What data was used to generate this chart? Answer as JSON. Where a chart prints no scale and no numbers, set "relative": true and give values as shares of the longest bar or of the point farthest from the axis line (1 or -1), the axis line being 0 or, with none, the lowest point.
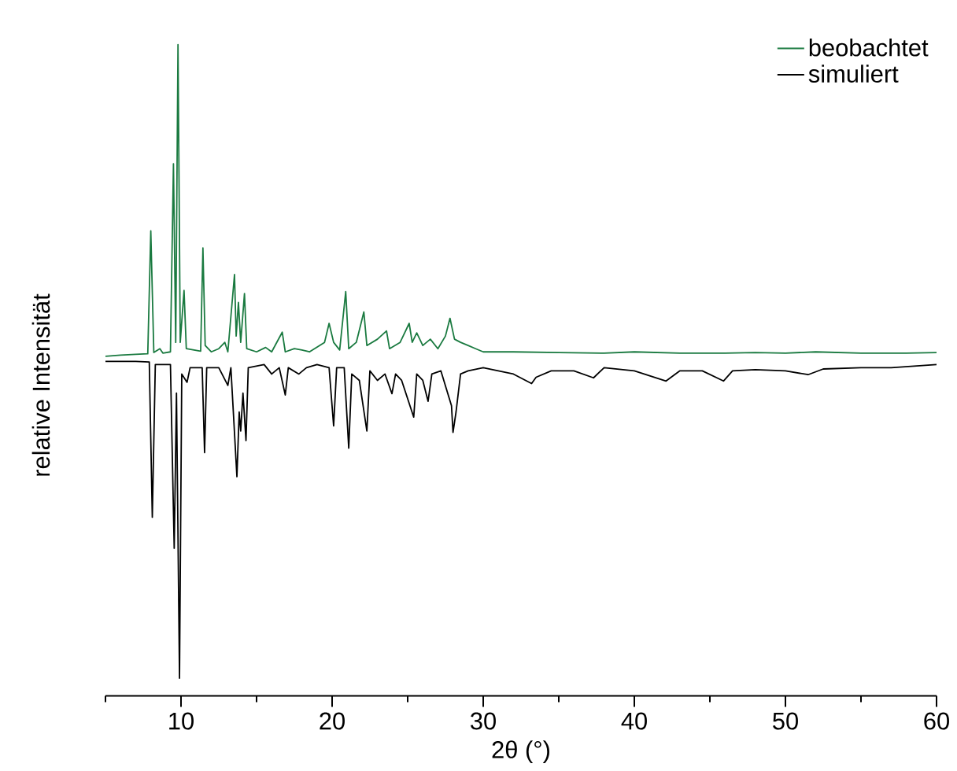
{
  "chart_data": {
    "type": "line",
    "relative": true,
    "xlabel": "2θ (°)",
    "ylabel": "relative Intensität",
    "xlim": [
      5,
      60
    ],
    "xticks": [
      {
        "value": 5,
        "label": null
      },
      10,
      {
        "value": 15,
        "label": null
      },
      20,
      {
        "value": 25,
        "label": null
      },
      30,
      {
        "value": 35,
        "label": null
      },
      40,
      {
        "value": 45,
        "label": null
      },
      50,
      {
        "value": 55,
        "label": null
      },
      60
    ],
    "legend": "top right",
    "grid": false,
    "marker": "none",
    "line_style": "solid",
    "series": [
      {
        "name": "beobachtet",
        "color": "#1a7a40",
        "x": [
          5,
          6,
          7,
          7.8,
          8.0,
          8.2,
          8.6,
          8.8,
          9.3,
          9.5,
          9.65,
          9.8,
          9.95,
          10.2,
          10.35,
          11.3,
          11.45,
          11.6,
          12.0,
          12.5,
          12.9,
          13.1,
          13.54,
          13.65,
          13.8,
          13.95,
          14.2,
          14.35,
          15,
          15.6,
          16,
          16.7,
          16.9,
          17.5,
          18,
          18.5,
          19.5,
          19.8,
          20.1,
          20.5,
          20.9,
          21.1,
          21.6,
          22.1,
          22.3,
          23.0,
          23.6,
          23.8,
          24.5,
          25.1,
          25.3,
          25.6,
          26,
          26.5,
          27,
          27.5,
          27.8,
          28.1,
          28.5,
          29,
          29.5,
          30,
          32,
          35,
          38,
          40,
          43,
          46,
          48,
          50,
          52,
          55,
          58,
          60
        ],
        "values": [
          0.508,
          0.51,
          0.511,
          0.512,
          0.706,
          0.514,
          0.52,
          0.513,
          0.515,
          0.812,
          0.53,
          1.0,
          0.53,
          0.612,
          0.52,
          0.516,
          0.679,
          0.525,
          0.515,
          0.52,
          0.53,
          0.515,
          0.637,
          0.54,
          0.593,
          0.53,
          0.607,
          0.52,
          0.515,
          0.522,
          0.515,
          0.546,
          0.515,
          0.52,
          0.518,
          0.515,
          0.53,
          0.56,
          0.53,
          0.518,
          0.61,
          0.52,
          0.53,
          0.578,
          0.525,
          0.535,
          0.548,
          0.52,
          0.53,
          0.56,
          0.53,
          0.545,
          0.525,
          0.535,
          0.52,
          0.54,
          0.568,
          0.535,
          0.53,
          0.525,
          0.52,
          0.515,
          0.515,
          0.514,
          0.513,
          0.515,
          0.513,
          0.513,
          0.514,
          0.513,
          0.515,
          0.513,
          0.513,
          0.514
        ]
      },
      {
        "name": "simuliert",
        "color": "#000000",
        "x": [
          5,
          7,
          7.9,
          8.1,
          8.3,
          9.3,
          9.55,
          9.7,
          9.9,
          10.05,
          10.4,
          10.6,
          11.4,
          11.56,
          11.7,
          12.5,
          13.1,
          13.3,
          13.7,
          13.85,
          13.95,
          14.1,
          14.3,
          14.45,
          15.5,
          16,
          16.5,
          16.9,
          17.1,
          17.8,
          18.3,
          19,
          19.8,
          20.1,
          20.3,
          20.8,
          21.1,
          21.3,
          21.8,
          22.3,
          22.5,
          23.0,
          23.5,
          23.96,
          24.2,
          24.6,
          25.4,
          25.6,
          26.0,
          26.35,
          26.6,
          27.2,
          27.9,
          28.0,
          28.2,
          28.5,
          29,
          30,
          31,
          32,
          33.2,
          33.5,
          34.5,
          36,
          37.3,
          38,
          40,
          42.1,
          43,
          44.5,
          45.9,
          46.5,
          48,
          50,
          51.5,
          52.5,
          55,
          57,
          60
        ],
        "values": [
          0.5,
          0.5,
          0.499,
          0.254,
          0.495,
          0.495,
          0.205,
          0.45,
          0,
          0.48,
          0.467,
          0.49,
          0.49,
          0.356,
          0.49,
          0.49,
          0.462,
          0.49,
          0.318,
          0.42,
          0.39,
          0.45,
          0.375,
          0.49,
          0.495,
          0.48,
          0.49,
          0.447,
          0.49,
          0.48,
          0.49,
          0.495,
          0.49,
          0.398,
          0.49,
          0.49,
          0.363,
          0.48,
          0.47,
          0.39,
          0.485,
          0.47,
          0.48,
          0.449,
          0.48,
          0.47,
          0.412,
          0.48,
          0.47,
          0.437,
          0.48,
          0.485,
          0.43,
          0.388,
          0.42,
          0.48,
          0.485,
          0.49,
          0.485,
          0.48,
          0.465,
          0.475,
          0.485,
          0.485,
          0.474,
          0.49,
          0.485,
          0.469,
          0.485,
          0.485,
          0.469,
          0.485,
          0.487,
          0.485,
          0.479,
          0.488,
          0.49,
          0.49,
          0.495
        ]
      }
    ]
  }
}
